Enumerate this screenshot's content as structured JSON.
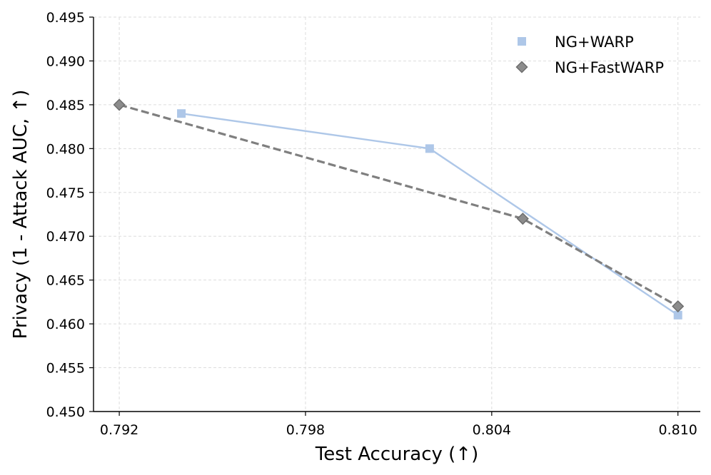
{
  "chart_data": {
    "type": "line",
    "xlabel": "Test Accuracy (↑)",
    "ylabel": "Privacy (1 - Attack AUC, ↑)",
    "xlim": [
      0.791,
      0.81
    ],
    "ylim": [
      0.45,
      0.495
    ],
    "xticks": [
      "0.792",
      "0.798",
      "0.804",
      "0.810"
    ],
    "yticks": [
      "0.450",
      "0.455",
      "0.460",
      "0.465",
      "0.470",
      "0.475",
      "0.480",
      "0.485",
      "0.490",
      "0.495"
    ],
    "grid": true,
    "legend_position": "top-right",
    "series": [
      {
        "name": "NG+WARP",
        "color": "#aec7e8",
        "marker": "square",
        "line_style": "solid",
        "points": [
          {
            "x": 0.794,
            "y": 0.484
          },
          {
            "x": 0.802,
            "y": 0.48
          },
          {
            "x": 0.81,
            "y": 0.461
          }
        ]
      },
      {
        "name": "NG+FastWARP",
        "color": "#7f7f7f",
        "marker": "diamond",
        "line_style": "dashed",
        "points": [
          {
            "x": 0.792,
            "y": 0.485
          },
          {
            "x": 0.805,
            "y": 0.472
          },
          {
            "x": 0.81,
            "y": 0.462
          }
        ]
      }
    ]
  }
}
